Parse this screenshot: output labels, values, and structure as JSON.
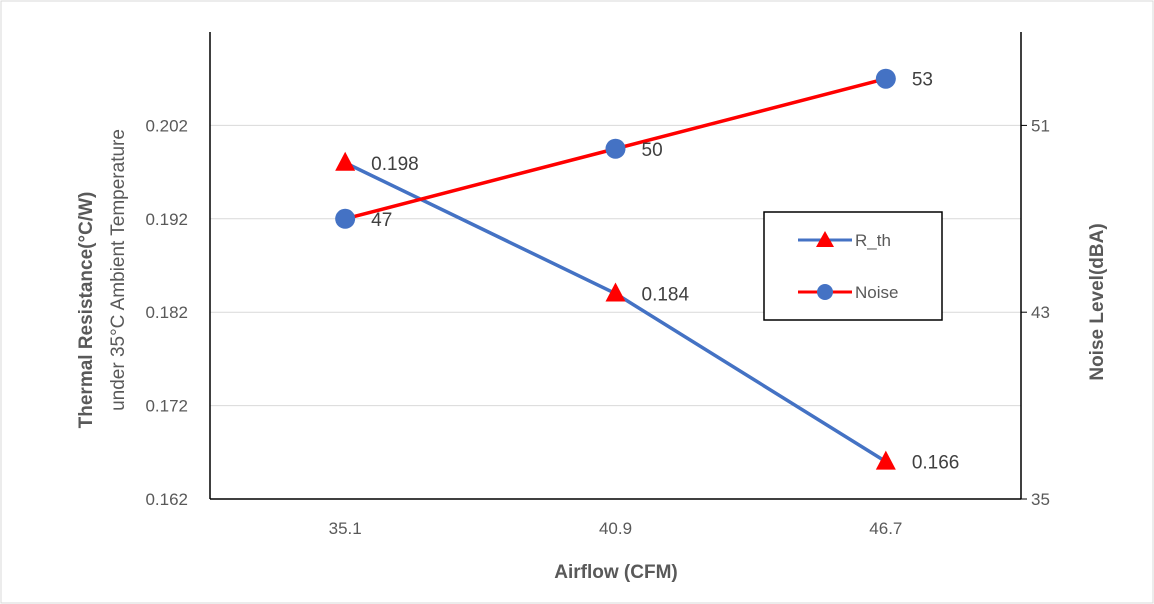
{
  "chart_data": {
    "type": "line",
    "categories": [
      "35.1",
      "40.9",
      "46.7"
    ],
    "xlabel": "Airflow (CFM)",
    "ylabel": "Thermal Resistance(°C/W)",
    "ylabel_sub": "under 35°C Ambient Temperature",
    "y2label": "Noise Level(dBA)",
    "ylim": [
      0.162,
      0.212
    ],
    "yticks": [
      "0.162",
      "0.172",
      "0.182",
      "0.192",
      "0.202"
    ],
    "y2lim": [
      35,
      55
    ],
    "y2ticks": [
      "35",
      "43",
      "51"
    ],
    "grid": true,
    "legend_position": "right",
    "series": [
      {
        "name": "R_th",
        "axis": "left",
        "values": [
          0.198,
          0.184,
          0.166
        ],
        "labels": [
          "0.198",
          "0.184",
          "0.166"
        ],
        "line_color": "#4472C4",
        "marker": "triangle",
        "marker_color": "#FF0000"
      },
      {
        "name": "Noise",
        "axis": "right",
        "values": [
          47,
          50,
          53
        ],
        "labels": [
          "47",
          "50",
          "53"
        ],
        "line_color": "#FF0000",
        "marker": "circle",
        "marker_color": "#4472C4"
      }
    ]
  }
}
